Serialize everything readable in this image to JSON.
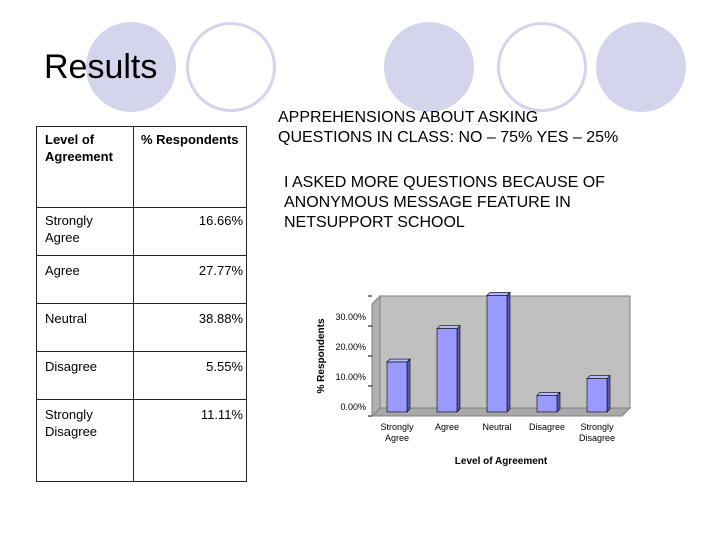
{
  "slide": {
    "title": "Results",
    "apprehension_line1": "APPREHENSIONS ABOUT ASKING",
    "apprehension_line2": "QUESTIONS IN CLASS: NO – 75% YES – 25%",
    "feature_line1": "I ASKED MORE QUESTIONS BECAUSE OF",
    "feature_line2": "ANONYMOUS MESSAGE FEATURE IN",
    "feature_line3": "NETSUPPORT SCHOOL"
  },
  "table": {
    "header_level_line1": "Level of",
    "header_level_line2": "Agreement",
    "header_respondents": "% Respondents",
    "rows": [
      {
        "level_line1": "Strongly",
        "level_line2": "Agree",
        "value": "16.66%"
      },
      {
        "level_line1": "Agree",
        "level_line2": "",
        "value": "27.77%"
      },
      {
        "level_line1": "Neutral",
        "level_line2": "",
        "value": "38.88%"
      },
      {
        "level_line1": "Disagree",
        "level_line2": "",
        "value": "5.55%"
      },
      {
        "level_line1": "Strongly",
        "level_line2": "Disagree",
        "value": "11.11%"
      }
    ]
  },
  "chart_data": {
    "type": "bar",
    "categories": [
      [
        "Strongly",
        "Agree"
      ],
      [
        "Agree"
      ],
      [
        "Neutral"
      ],
      [
        "Disagree"
      ],
      [
        "Strongly",
        "Disagree"
      ]
    ],
    "values": [
      16.66,
      27.77,
      38.88,
      5.55,
      11.11
    ],
    "xlabel": "Level of Agreement",
    "ylabel": "% Respondents",
    "ylim": [
      0,
      40
    ],
    "yticks": [
      "0.00%",
      "10.00%",
      "20.00%",
      "30.00%",
      "40.00%"
    ],
    "bar_color": "#9999ff",
    "wall_color": "#c0c0c0"
  }
}
